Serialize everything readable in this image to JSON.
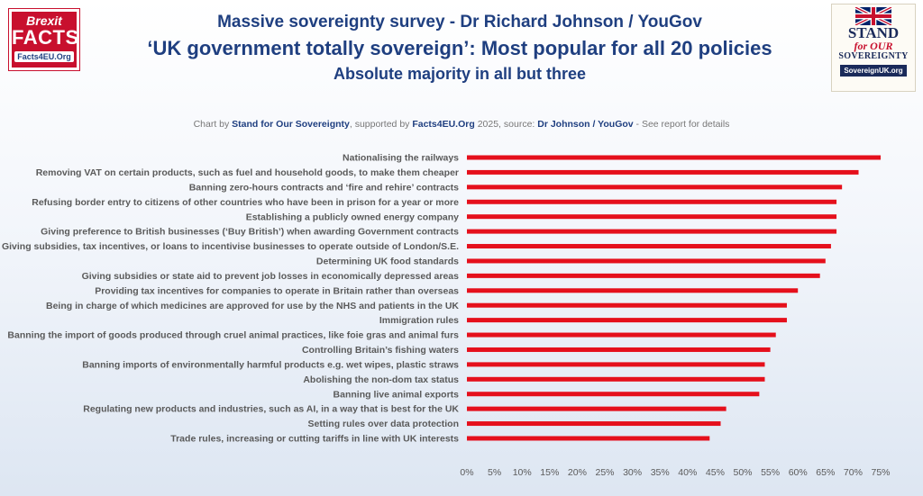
{
  "logo_left": {
    "line1": "Brexit",
    "line2": "FACTS",
    "line3": "Facts4EU.Org"
  },
  "logo_right": {
    "line1": "STAND",
    "line2": "for OUR",
    "line3": "SOVEREIGNTY",
    "line4": "SovereignUK.org"
  },
  "credit": {
    "p1": "Chart by ",
    "by": "Stand for Our Sovereignty",
    "p2": ", supported by ",
    "supporter": "Facts4EU.Org",
    "p3": " 2025, source: ",
    "source": "Dr Johnson / YouGov",
    "p4": " - See report for details"
  },
  "colors": {
    "bar": "#e5101c",
    "title": "#1f3f80"
  },
  "chart_data": {
    "type": "bar",
    "orientation": "horizontal",
    "title": "Massive sovereignty survey - Dr Richard Johnson / YouGov",
    "subtitle": "‘UK government totally sovereign’: Most popular for all 20 policies",
    "subtitle2": "Absolute majority in all but three",
    "xlim": [
      0,
      75
    ],
    "ticks": [
      "0%",
      "5%",
      "10%",
      "15%",
      "20%",
      "25%",
      "30%",
      "35%",
      "40%",
      "45%",
      "50%",
      "55%",
      "60%",
      "65%",
      "70%",
      "75%"
    ],
    "grid": false,
    "categories": [
      "Nationalising the railways",
      "Removing VAT on certain products, such as fuel and household goods, to make them cheaper",
      "Banning zero-hours contracts and ‘fire and rehire’ contracts",
      "Refusing border entry to citizens of other countries who have been in prison for a year or more",
      "Establishing a publicly owned energy company",
      "Giving preference to British businesses (‘Buy British’) when awarding Government contracts",
      "Giving subsidies, tax incentives, or loans to incentivise businesses to operate outside of London/S.E.",
      "Determining UK food standards",
      "Giving subsidies or state aid to prevent job losses in economically depressed areas",
      "Providing tax incentives for companies to operate in Britain rather than overseas",
      "Being in charge of which medicines are approved for use by the NHS and patients in the UK",
      "Immigration rules",
      "Banning the import of goods produced through cruel animal practices, like foie gras and animal furs",
      "Controlling Britain’s fishing waters",
      "Banning imports of environmentally harmful products e.g. wet wipes, plastic straws",
      "Abolishing the non-dom tax status",
      "Banning live animal exports",
      "Regulating new products and industries, such as AI, in a way that is best for the UK",
      "Setting rules over data protection",
      "Trade rules, increasing or cutting tariffs in line with UK interests"
    ],
    "values": [
      75,
      71,
      68,
      67,
      67,
      67,
      66,
      65,
      64,
      60,
      58,
      58,
      56,
      55,
      54,
      54,
      53,
      47,
      46,
      44
    ]
  }
}
